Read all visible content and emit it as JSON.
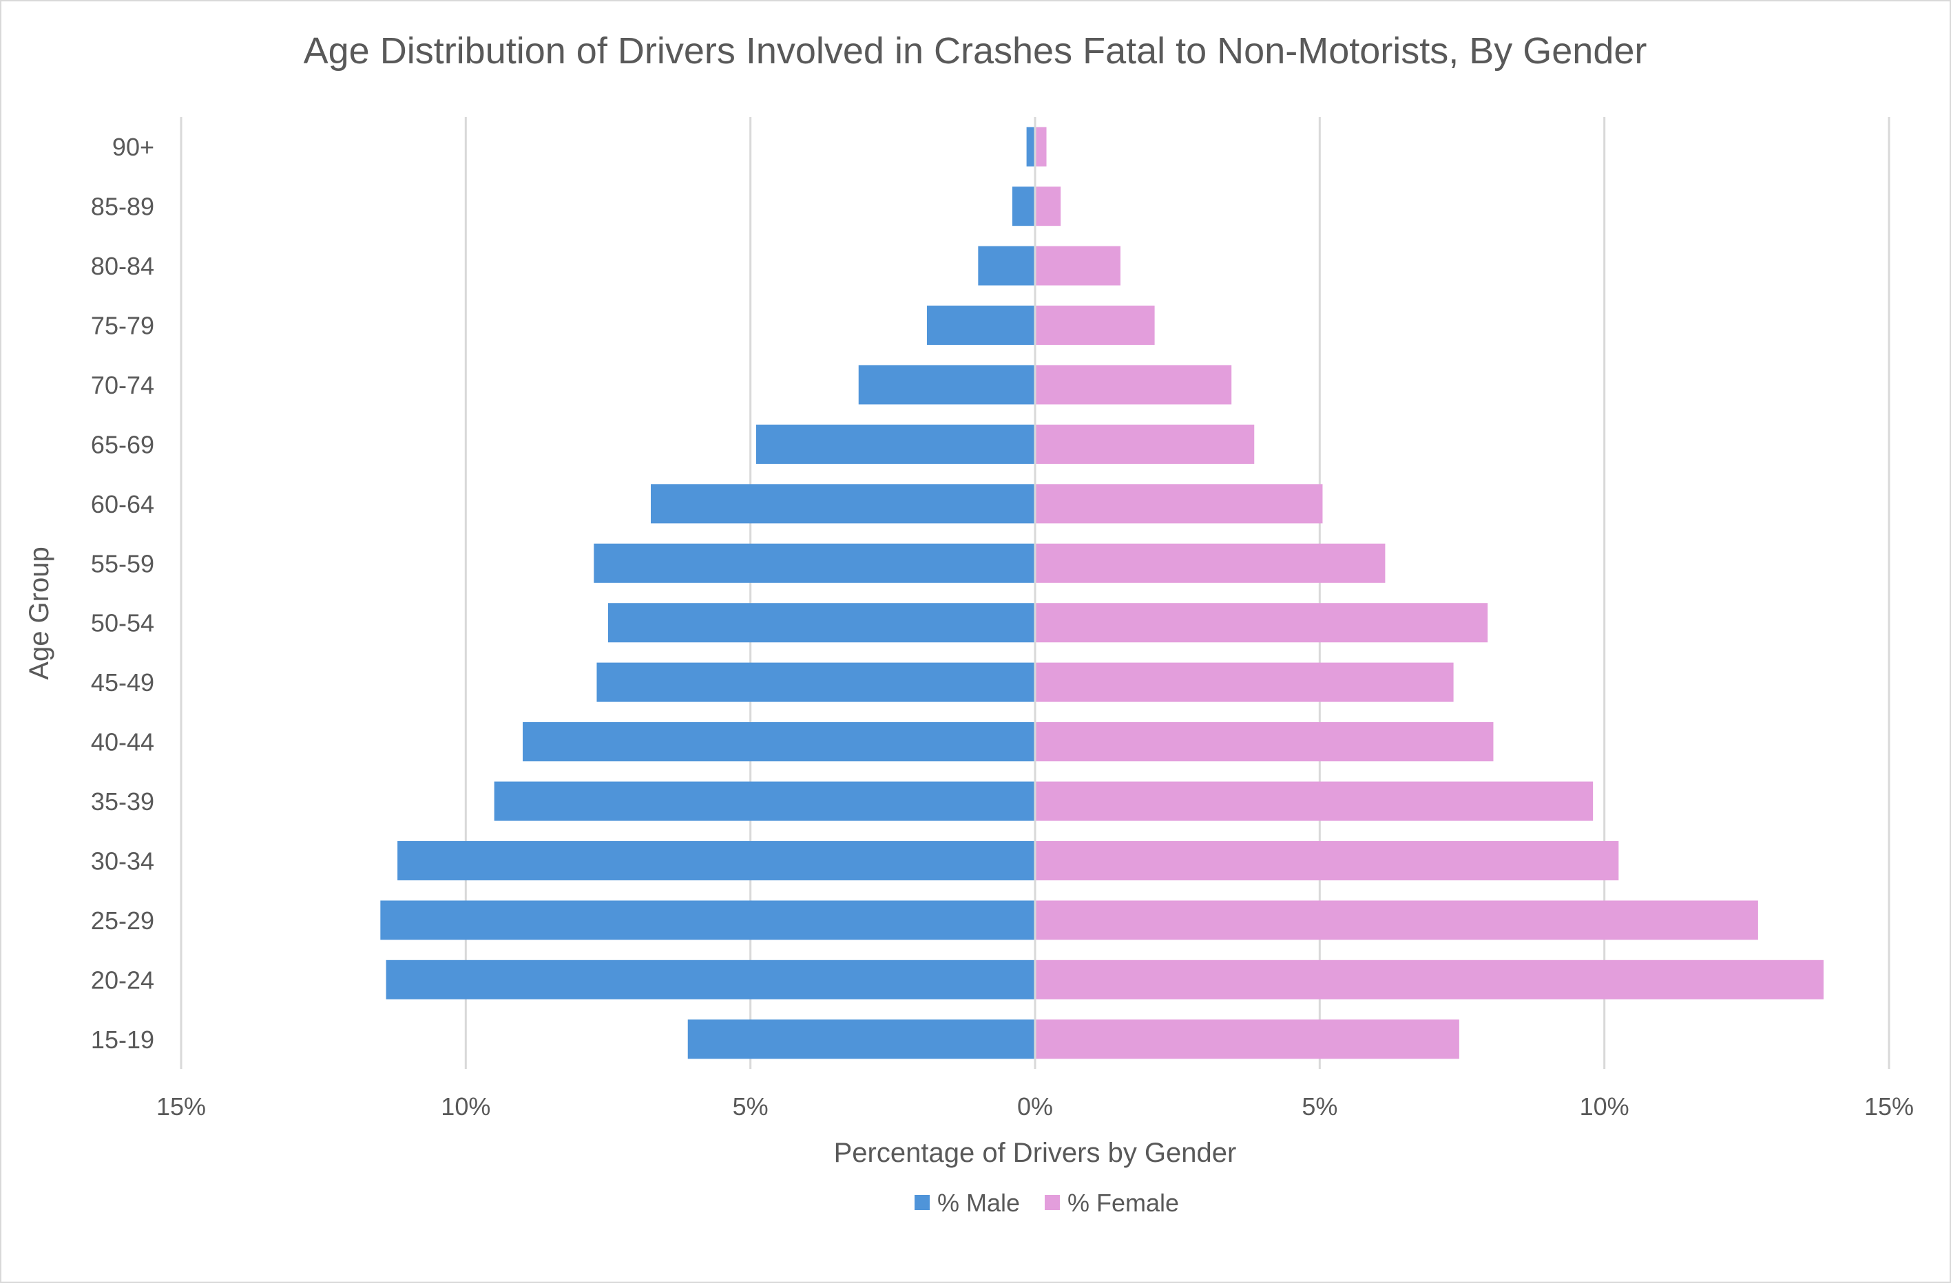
{
  "chart_data": {
    "type": "bar",
    "orientation": "horizontal",
    "title": "Age Distribution of Drivers Involved in Crashes Fatal to Non-Motorists, By Gender",
    "xlabel": "Percentage of Drivers by Gender",
    "ylabel": "Age Group",
    "xlim": [
      -15,
      15
    ],
    "x_ticks": [
      -15,
      -10,
      -5,
      0,
      5,
      10,
      15
    ],
    "x_tick_labels": [
      "15%",
      "10%",
      "5%",
      "0%",
      "5%",
      "10%",
      "15%"
    ],
    "grid": true,
    "legend_position": "bottom",
    "categories": [
      "15-19",
      "20-24",
      "25-29",
      "30-34",
      "35-39",
      "40-44",
      "45-49",
      "50-54",
      "55-59",
      "60-64",
      "65-69",
      "70-74",
      "75-79",
      "80-84",
      "85-89",
      "90+"
    ],
    "series": [
      {
        "name": "% Male",
        "color": "#4f94d9",
        "values": [
          6.1,
          11.4,
          11.5,
          11.2,
          9.5,
          9.0,
          7.7,
          7.5,
          7.75,
          6.75,
          4.9,
          3.1,
          1.9,
          1.0,
          0.4,
          0.15
        ]
      },
      {
        "name": "% Female",
        "color": "#e39edc",
        "values": [
          7.45,
          13.85,
          12.7,
          10.25,
          9.8,
          8.05,
          7.35,
          7.95,
          6.15,
          5.05,
          3.85,
          3.45,
          2.1,
          1.5,
          0.45,
          0.2
        ]
      }
    ]
  }
}
